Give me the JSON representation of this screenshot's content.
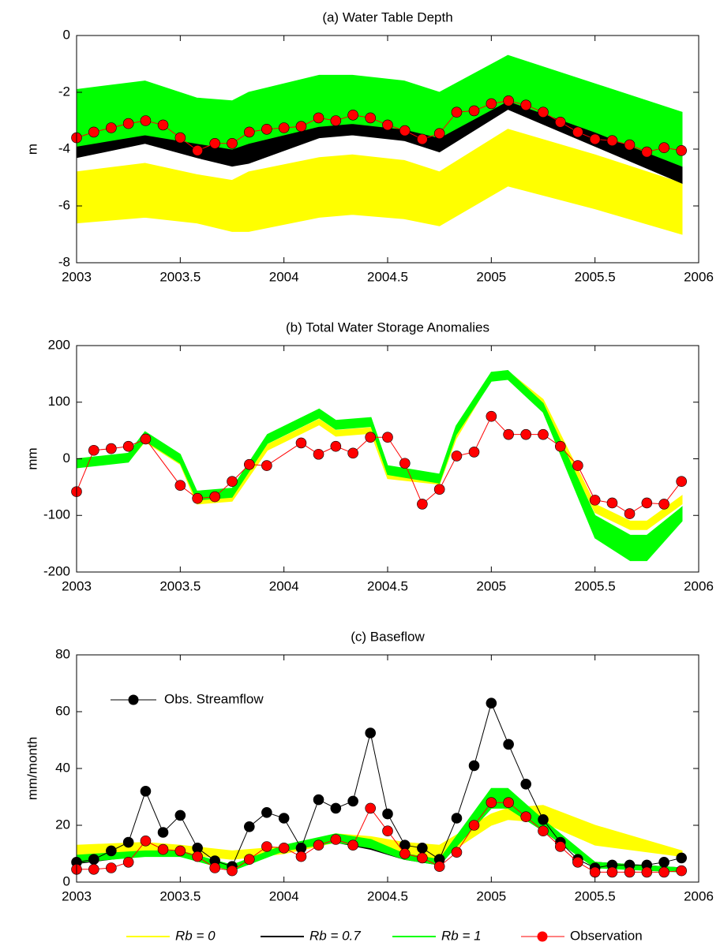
{
  "chart_data": [
    {
      "type": "line",
      "title": "(a) Water Table Depth",
      "ylabel": "m",
      "xlim": [
        2003,
        2006
      ],
      "xticks": [
        2003,
        2003.5,
        2004,
        2004.5,
        2005,
        2005.5,
        2006
      ],
      "ylim": [
        -8,
        0
      ],
      "yticks": [
        -8,
        -6,
        -4,
        -2,
        0
      ],
      "legend": "below",
      "series": [
        {
          "name": "Rb = 0",
          "color": "#ffff00",
          "x": [
            2003,
            2003.33,
            2003.58,
            2003.75,
            2003.83,
            2004.17,
            2004.33,
            2004.58,
            2004.75,
            2005.08,
            2005.5,
            2005.92
          ],
          "lower": [
            -6.6,
            -6.4,
            -6.6,
            -6.9,
            -6.9,
            -6.4,
            -6.3,
            -6.45,
            -6.7,
            -5.3,
            -6.1,
            -7.0
          ],
          "upper": [
            -4.8,
            -4.5,
            -4.9,
            -5.1,
            -4.8,
            -4.3,
            -4.2,
            -4.4,
            -4.8,
            -3.3,
            -4.2,
            -5.2
          ]
        },
        {
          "name": "Rb = 0.7",
          "color": "#000000",
          "x": [
            2003,
            2003.33,
            2003.58,
            2003.75,
            2003.83,
            2004.17,
            2004.33,
            2004.58,
            2004.75,
            2005.08,
            2005.5,
            2005.92
          ],
          "lower": [
            -4.3,
            -3.8,
            -4.3,
            -4.6,
            -4.5,
            -3.6,
            -3.5,
            -3.7,
            -4.1,
            -2.6,
            -3.9,
            -5.2
          ],
          "upper": [
            -3.7,
            -3.1,
            -3.6,
            -3.9,
            -3.6,
            -2.9,
            -2.8,
            -3.0,
            -3.4,
            -1.9,
            -3.3,
            -4.5
          ]
        },
        {
          "name": "Rb = 1",
          "color": "#00ff00",
          "x": [
            2003,
            2003.33,
            2003.58,
            2003.75,
            2003.83,
            2004.17,
            2004.33,
            2004.58,
            2004.75,
            2005.08,
            2005.5,
            2005.92
          ],
          "lower": [
            -3.9,
            -3.5,
            -3.8,
            -4.0,
            -3.8,
            -3.2,
            -3.1,
            -3.3,
            -3.6,
            -2.3,
            -3.4,
            -4.6
          ],
          "upper": [
            -1.9,
            -1.6,
            -2.2,
            -2.3,
            -2.0,
            -1.4,
            -1.4,
            -1.6,
            -2.0,
            -0.7,
            -1.7,
            -2.7
          ]
        },
        {
          "name": "Observation",
          "color": "#ff0000",
          "marker": "circle",
          "x": [
            2003,
            2003.083,
            2003.167,
            2003.25,
            2003.333,
            2003.417,
            2003.5,
            2003.583,
            2003.667,
            2003.75,
            2003.833,
            2003.917,
            2004,
            2004.083,
            2004.167,
            2004.25,
            2004.333,
            2004.417,
            2004.5,
            2004.583,
            2004.667,
            2004.75,
            2004.833,
            2004.917,
            2005,
            2005.083,
            2005.167,
            2005.25,
            2005.333,
            2005.417,
            2005.5,
            2005.583,
            2005.667,
            2005.75,
            2005.833,
            2005.917
          ],
          "values": [
            -3.6,
            -3.4,
            -3.25,
            -3.1,
            -3.0,
            -3.15,
            -3.6,
            -4.05,
            -3.8,
            -3.8,
            -3.4,
            -3.3,
            -3.25,
            -3.2,
            -2.9,
            -3.0,
            -2.8,
            -2.9,
            -3.15,
            -3.35,
            -3.65,
            -3.45,
            -2.7,
            -2.65,
            -2.4,
            -2.3,
            -2.45,
            -2.7,
            -3.05,
            -3.4,
            -3.65,
            -3.7,
            -3.85,
            -4.1,
            -3.95,
            -4.05
          ]
        }
      ]
    },
    {
      "type": "line",
      "title": "(b) Total Water Storage Anomalies",
      "ylabel": "mm",
      "xlim": [
        2003,
        2006
      ],
      "xticks": [
        2003,
        2003.5,
        2004,
        2004.5,
        2005,
        2005.5,
        2006
      ],
      "ylim": [
        -200,
        200
      ],
      "yticks": [
        -200,
        -100,
        0,
        100,
        200
      ],
      "series": [
        {
          "name": "Rb = 0",
          "color": "#ffff00",
          "x": [
            2003,
            2003.25,
            2003.33,
            2003.5,
            2003.58,
            2003.75,
            2003.92,
            2004.17,
            2004.25,
            2004.42,
            2004.5,
            2004.75,
            2004.83,
            2005,
            2005.08,
            2005.25,
            2005.5,
            2005.67,
            2005.75,
            2005.92
          ],
          "lower": [
            -10,
            -5,
            30,
            -10,
            -80,
            -75,
            15,
            60,
            40,
            45,
            -35,
            -45,
            35,
            140,
            148,
            95,
            -95,
            -125,
            -125,
            -80
          ],
          "upper": [
            0,
            5,
            40,
            0,
            -65,
            -60,
            25,
            70,
            50,
            55,
            -25,
            -35,
            45,
            145,
            155,
            105,
            -80,
            -110,
            -110,
            -65
          ]
        },
        {
          "name": "Rb = 0.7",
          "color": "#000000",
          "x": [
            2003,
            2003.25,
            2003.33,
            2003.5,
            2003.58,
            2003.75,
            2003.92,
            2004.17,
            2004.25,
            2004.42,
            2004.5,
            2004.75,
            2004.83,
            2005,
            2005.08,
            2005.25,
            2005.5,
            2005.67,
            2005.75,
            2005.92
          ],
          "lower": [
            -10,
            0,
            37,
            -3,
            -68,
            -63,
            32,
            77,
            57,
            62,
            -23,
            -38,
            47,
            142,
            145,
            87,
            -115,
            -158,
            -158,
            -95
          ],
          "upper": [
            -6,
            4,
            43,
            3,
            -62,
            -57,
            38,
            83,
            63,
            68,
            -17,
            -32,
            53,
            148,
            151,
            93,
            -105,
            -142,
            -142,
            -85
          ]
        },
        {
          "name": "Rb = 1",
          "color": "#00ff00",
          "x": [
            2003,
            2003.25,
            2003.33,
            2003.5,
            2003.58,
            2003.75,
            2003.92,
            2004.17,
            2004.25,
            2004.42,
            2004.5,
            2004.75,
            2004.83,
            2005,
            2005.08,
            2005.25,
            2005.5,
            2005.67,
            2005.75,
            2005.92
          ],
          "lower": [
            -16,
            -6,
            32,
            -8,
            -73,
            -68,
            27,
            72,
            52,
            57,
            -28,
            -43,
            42,
            137,
            140,
            82,
            -140,
            -180,
            -180,
            -110
          ],
          "upper": [
            0,
            10,
            48,
            8,
            -57,
            -52,
            43,
            88,
            68,
            73,
            -12,
            -27,
            58,
            153,
            156,
            98,
            -100,
            -135,
            -135,
            -85
          ]
        },
        {
          "name": "Observation",
          "color": "#ff0000",
          "marker": "circle",
          "x": [
            2003,
            2003.083,
            2003.167,
            2003.25,
            2003.333,
            2003.5,
            2003.583,
            2003.667,
            2003.75,
            2003.833,
            2003.917,
            2004.083,
            2004.167,
            2004.25,
            2004.333,
            2004.417,
            2004.5,
            2004.583,
            2004.667,
            2004.75,
            2004.833,
            2004.917,
            2005,
            2005.083,
            2005.167,
            2005.25,
            2005.333,
            2005.417,
            2005.5,
            2005.583,
            2005.667,
            2005.75,
            2005.833,
            2005.917
          ],
          "values": [
            -58,
            15,
            18,
            22,
            35,
            -47,
            -70,
            -67,
            -40,
            -10,
            -12,
            28,
            8,
            22,
            10,
            38,
            38,
            -8,
            -80,
            -54,
            5,
            12,
            75,
            43,
            43,
            43,
            22,
            -12,
            -73,
            -78,
            -97,
            -78,
            -80,
            -40
          ]
        }
      ]
    },
    {
      "type": "line",
      "title": "(c) Baseflow",
      "ylabel": "mm/month",
      "xlim": [
        2003,
        2006
      ],
      "xticks": [
        2003,
        2003.5,
        2004,
        2004.5,
        2005,
        2005.5,
        2006
      ],
      "ylim": [
        0,
        80
      ],
      "yticks": [
        0,
        20,
        40,
        60,
        80
      ],
      "legend": "upper left",
      "series": [
        {
          "name": "Rb = 0",
          "color": "#ffff00",
          "x": [
            2003,
            2003.33,
            2003.5,
            2003.75,
            2004,
            2004.25,
            2004.42,
            2004.58,
            2004.75,
            2005,
            2005.08,
            2005.25,
            2005.5,
            2005.92
          ],
          "lower": [
            9,
            10.5,
            10,
            8,
            10,
            14,
            13,
            10,
            8,
            20,
            22,
            21,
            13,
            9
          ],
          "upper": [
            13,
            14,
            13,
            11,
            12.5,
            17,
            16,
            14,
            13,
            24,
            26,
            27,
            20,
            11
          ]
        },
        {
          "name": "Rb = 0.7",
          "color": "#000000",
          "x": [
            2003,
            2003.33,
            2003.5,
            2003.75,
            2004,
            2004.25,
            2004.42,
            2004.58,
            2004.75,
            2005,
            2005.08,
            2005.25,
            2005.5,
            2005.92
          ],
          "lower": [
            6.5,
            9.5,
            9.5,
            5,
            11.5,
            14,
            11.5,
            8,
            6,
            26,
            27,
            20,
            6,
            4
          ],
          "upper": [
            7.5,
            10.5,
            10.5,
            6,
            12.5,
            15,
            12.5,
            9,
            7,
            28,
            29,
            21,
            7,
            5
          ]
        },
        {
          "name": "Rb = 1",
          "color": "#00ff00",
          "x": [
            2003,
            2003.33,
            2003.5,
            2003.75,
            2004,
            2004.25,
            2004.42,
            2004.58,
            2004.75,
            2005,
            2005.08,
            2005.25,
            2005.5,
            2005.92
          ],
          "lower": [
            7,
            9,
            9,
            4,
            11,
            14,
            12,
            8,
            6,
            26,
            26,
            18,
            5,
            3.5
          ],
          "upper": [
            9.5,
            11,
            11,
            6,
            13,
            17,
            15,
            10,
            8,
            33,
            33,
            22,
            7,
            5
          ]
        },
        {
          "name": "Obs. Streamflow",
          "color": "#000000",
          "marker": "circle",
          "x": [
            2003,
            2003.083,
            2003.167,
            2003.25,
            2003.333,
            2003.417,
            2003.5,
            2003.583,
            2003.667,
            2003.75,
            2003.833,
            2003.917,
            2004,
            2004.083,
            2004.167,
            2004.25,
            2004.333,
            2004.417,
            2004.5,
            2004.583,
            2004.667,
            2004.75,
            2004.833,
            2004.917,
            2005,
            2005.083,
            2005.167,
            2005.25,
            2005.333,
            2005.417,
            2005.5,
            2005.583,
            2005.667,
            2005.75,
            2005.833,
            2005.917
          ],
          "values": [
            7,
            8,
            11,
            14,
            32,
            17.5,
            23.5,
            12,
            7.5,
            5.5,
            19.5,
            24.5,
            22.5,
            12,
            29,
            26,
            28.5,
            52.5,
            24,
            13,
            12,
            8,
            22.5,
            41,
            63,
            48.5,
            34.5,
            22,
            14,
            8,
            5,
            6,
            6,
            6,
            7,
            8.5
          ]
        },
        {
          "name": "Observation",
          "color": "#ff0000",
          "marker": "circle",
          "x": [
            2003,
            2003.083,
            2003.167,
            2003.25,
            2003.333,
            2003.417,
            2003.5,
            2003.583,
            2003.667,
            2003.75,
            2003.833,
            2003.917,
            2004,
            2004.083,
            2004.167,
            2004.25,
            2004.333,
            2004.417,
            2004.5,
            2004.583,
            2004.667,
            2004.75,
            2004.833,
            2004.917,
            2005,
            2005.083,
            2005.167,
            2005.25,
            2005.333,
            2005.417,
            2005.5,
            2005.583,
            2005.667,
            2005.75,
            2005.833,
            2005.917
          ],
          "values": [
            4.5,
            4.5,
            5,
            7,
            14.5,
            11.5,
            11,
            9,
            5,
            4,
            8,
            12.5,
            12,
            9,
            13,
            15,
            13,
            26,
            18,
            10,
            8.5,
            5.5,
            10.5,
            20,
            28,
            28,
            23,
            18,
            12.5,
            7,
            3.5,
            3.5,
            3.5,
            3.5,
            3.5,
            4
          ]
        }
      ]
    }
  ]
}
